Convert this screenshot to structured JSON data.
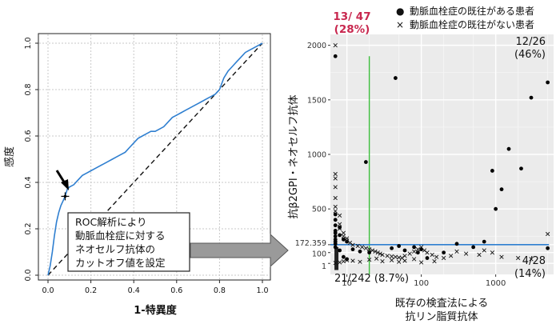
{
  "figure": {
    "arrow_note_lines": [
      "ROC解析により",
      "動脈血栓症に対する",
      "ネオセルフ抗体の",
      "カットオフ値を設定"
    ]
  },
  "chart_data": [
    {
      "type": "line",
      "xlabel": "1-特異度",
      "ylabel": "感度",
      "xlim": [
        0,
        1
      ],
      "ylim": [
        0,
        1
      ],
      "x_ticks": [
        "0.0",
        "0.2",
        "0.4",
        "0.6",
        "0.8",
        "1.0"
      ],
      "y_ticks": [
        "0.0",
        "0.2",
        "0.4",
        "0.6",
        "0.8",
        "1.0"
      ],
      "grid": true,
      "series": [
        {
          "x": [
            0,
            0.01,
            0.02,
            0.03,
            0.04,
            0.05,
            0.06,
            0.07,
            0.08,
            0.09,
            0.1,
            0.12,
            0.14,
            0.16,
            0.18,
            0.2,
            0.22,
            0.24,
            0.26,
            0.28,
            0.3,
            0.32,
            0.34,
            0.36,
            0.38,
            0.4,
            0.42,
            0.44,
            0.46,
            0.48,
            0.5,
            0.52,
            0.54,
            0.56,
            0.58,
            0.6,
            0.62,
            0.64,
            0.66,
            0.68,
            0.7,
            0.72,
            0.74,
            0.76,
            0.78,
            0.8,
            0.82,
            0.84,
            0.86,
            0.88,
            0.9,
            0.92,
            0.94,
            0.96,
            0.98,
            1.0
          ],
          "y": [
            0,
            0.04,
            0.1,
            0.17,
            0.23,
            0.27,
            0.3,
            0.32,
            0.34,
            0.37,
            0.38,
            0.39,
            0.41,
            0.43,
            0.44,
            0.45,
            0.46,
            0.47,
            0.48,
            0.49,
            0.5,
            0.51,
            0.52,
            0.53,
            0.55,
            0.57,
            0.59,
            0.6,
            0.61,
            0.62,
            0.62,
            0.63,
            0.64,
            0.66,
            0.68,
            0.69,
            0.7,
            0.71,
            0.72,
            0.73,
            0.74,
            0.75,
            0.76,
            0.77,
            0.78,
            0.8,
            0.85,
            0.88,
            0.9,
            0.92,
            0.94,
            0.96,
            0.97,
            0.98,
            0.99,
            1.0
          ]
        }
      ],
      "reference_line": [
        [
          0,
          0
        ],
        [
          1,
          1
        ]
      ],
      "cutoff_point": {
        "x": 0.08,
        "y": 0.34
      }
    },
    {
      "type": "scatter",
      "xlabel_lines": [
        "既存の検査法による",
        "抗リン脂質抗体"
      ],
      "ylabel": "抗β2GPI・ネオセルフ抗体",
      "x_scale": "log",
      "xlim": [
        6,
        6000
      ],
      "ylim": [
        -100,
        2100
      ],
      "x_ticks": [
        10,
        100,
        1000
      ],
      "x_tick_labels": [
        "10",
        "100",
        "1000"
      ],
      "y_ticks": [
        1,
        100,
        172.359,
        500,
        1000,
        1500,
        2000
      ],
      "y_tick_labels": [
        "1",
        "100",
        "172.359",
        "500",
        "1000",
        "1500",
        "2000"
      ],
      "background": "#ebebeb",
      "cutoff_y": 172.359,
      "cutoff_x": 20,
      "legend": [
        {
          "marker": "●",
          "label": "動脈血栓症の既往がある患者"
        },
        {
          "marker": "×",
          "label": "動脈血栓症の既往がない患者"
        }
      ],
      "annotations": {
        "top_left": [
          "13/ 47",
          "(28%)"
        ],
        "top_right": [
          "12/26",
          "(46%)"
        ],
        "bottom_left": "21/242 (8.7%)",
        "bottom_right": [
          "4/28",
          "(14%)"
        ]
      },
      "series": [
        {
          "name": "動脈血栓症の既往がある患者",
          "marker": "dot",
          "x": [
            7,
            7,
            7,
            7,
            7,
            7,
            7,
            7,
            7,
            7,
            7,
            8,
            8,
            9,
            10,
            18,
            20,
            45,
            60,
            80,
            90,
            100,
            120,
            200,
            300,
            500,
            700,
            900,
            1000,
            1200,
            1500,
            2200,
            3000,
            5000,
            5000,
            8,
            9,
            10,
            12,
            15,
            40,
            50
          ],
          "y": [
            1900,
            450,
            400,
            350,
            300,
            280,
            250,
            220,
            200,
            180,
            150,
            330,
            260,
            220,
            200,
            930,
            100,
            1700,
            120,
            150,
            100,
            130,
            50,
            100,
            180,
            150,
            200,
            850,
            500,
            680,
            1050,
            870,
            1520,
            1660,
            140,
            120,
            60,
            40,
            130,
            110,
            140,
            160
          ]
        },
        {
          "name": "動脈血栓症の既往がない患者",
          "marker": "cross",
          "x": [
            7,
            7,
            7,
            7,
            7,
            7,
            7,
            8,
            8,
            8,
            9,
            9,
            10,
            10,
            11,
            12,
            14,
            16,
            18,
            20,
            22,
            24,
            26,
            28,
            30,
            35,
            40,
            45,
            50,
            55,
            60,
            70,
            80,
            90,
            100,
            110,
            120,
            140,
            160,
            200,
            250,
            300,
            400,
            600,
            700,
            900,
            1200,
            2000,
            3000,
            5000,
            7,
            8,
            9,
            10,
            12,
            15,
            20,
            25,
            30,
            40,
            50,
            60,
            80,
            100,
            150
          ],
          "y": [
            2000,
            820,
            780,
            700,
            600,
            520,
            480,
            440,
            360,
            320,
            280,
            250,
            230,
            210,
            190,
            170,
            160,
            150,
            140,
            130,
            120,
            110,
            100,
            90,
            80,
            70,
            65,
            60,
            55,
            50,
            70,
            90,
            110,
            130,
            150,
            120,
            100,
            80,
            60,
            50,
            70,
            110,
            90,
            80,
            120,
            100,
            60,
            50,
            40,
            270,
            5,
            10,
            20,
            30,
            25,
            15,
            35,
            45,
            20,
            30,
            15,
            25,
            40,
            10,
            20
          ]
        }
      ]
    }
  ]
}
